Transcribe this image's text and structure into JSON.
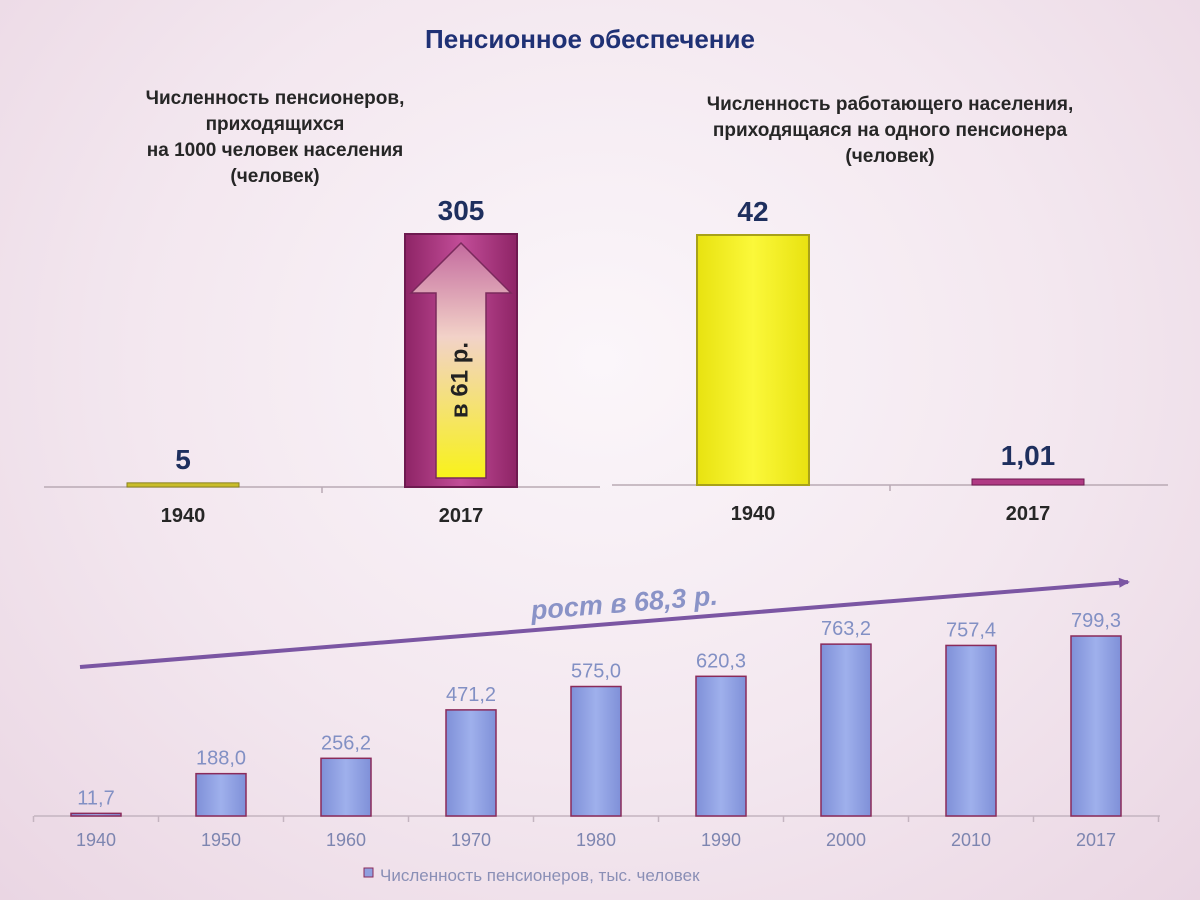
{
  "page_title": "Пенсионное обеспечение",
  "colors": {
    "title": "#1f3175",
    "pensioner_bar": "#b03a84",
    "worker_bar": "#f6f21a",
    "bottom_bar": "#8f9fdf",
    "arrow_line": "#7b56a3"
  },
  "chart_data": [
    {
      "type": "bar",
      "title_lines": [
        "Численность пенсионеров,",
        "приходящихся",
        "на 1000 человек населения",
        "(человек)"
      ],
      "categories": [
        "1940",
        "2017"
      ],
      "values": [
        5,
        305
      ],
      "value_labels": [
        "5",
        "305"
      ],
      "annotation": "в 61 р.",
      "annotation_icon": "up-arrow-icon"
    },
    {
      "type": "bar",
      "title_lines": [
        "Численность работающего населения,",
        "приходящаяся на одного пенсионера",
        "(человек)"
      ],
      "categories": [
        "1940",
        "2017"
      ],
      "values": [
        42,
        1.01
      ],
      "value_labels": [
        "42",
        "1,01"
      ]
    },
    {
      "type": "bar",
      "categories": [
        "1940",
        "1950",
        "1960",
        "1970",
        "1980",
        "1990",
        "2000",
        "2010",
        "2017"
      ],
      "values": [
        11.7,
        188.0,
        256.2,
        471.2,
        575.0,
        620.3,
        763.2,
        757.4,
        799.3
      ],
      "value_labels": [
        "11,7",
        "188,0",
        "256,2",
        "471,2",
        "575,0",
        "620,3",
        "763,2",
        "757,4",
        "799,3"
      ],
      "legend": "Численность пенсионеров, тыс. человек",
      "annotation": "рост в 68,3 р."
    }
  ]
}
